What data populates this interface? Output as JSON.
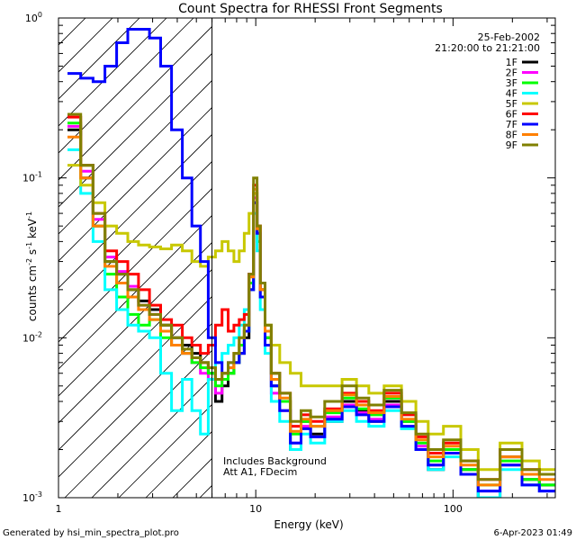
{
  "chart_data": {
    "type": "line",
    "title": "Count Spectra for RHESSI Front Segments",
    "xlabel": "Energy (keV)",
    "ylabel_parts": {
      "a": "counts cm",
      "b": "-2",
      "c": " s",
      "d": "-1",
      "e": " keV",
      "f": "-1"
    },
    "xscale": "log",
    "yscale": "log",
    "xlim": [
      1,
      330
    ],
    "ylim": [
      0.001,
      1
    ],
    "x_tick_labels": [
      {
        "v": 1,
        "t": "1"
      },
      {
        "v": 10,
        "t": "10"
      },
      {
        "v": 100,
        "t": "100"
      }
    ],
    "y_tick_labels": [
      {
        "m": 1,
        "e": 0,
        "base": "10",
        "exp": "0"
      },
      {
        "m": 1,
        "e": -1,
        "base": "10",
        "exp": "-1"
      },
      {
        "m": 1,
        "e": -2,
        "base": "10",
        "exp": "-2"
      },
      {
        "m": 1,
        "e": -3,
        "base": "10",
        "exp": "-3"
      }
    ],
    "date": "25-Feb-2002",
    "time_range": "21:20:00 to 21:21:00",
    "hatched_region_keV": [
      1,
      6
    ],
    "annotations": [
      "Includes Background",
      "Att A1, FDecim"
    ],
    "footer_left": "Generated by hsi_min_spectra_plot.pro",
    "footer_right": "6-Apr-2023 01:49",
    "series": [
      {
        "name": "1F",
        "color": "#000000",
        "x": [
          1.2,
          1.4,
          1.6,
          1.85,
          2.1,
          2.4,
          2.7,
          3.1,
          3.5,
          4,
          4.5,
          5,
          5.5,
          6,
          6.5,
          7,
          7.5,
          8,
          8.5,
          9,
          9.5,
          10,
          10.3,
          10.8,
          11.5,
          12.5,
          14,
          16,
          18,
          20,
          25,
          30,
          35,
          40,
          50,
          60,
          70,
          80,
          100,
          120,
          150,
          200,
          250,
          300
        ],
        "y": [
          0.2,
          0.1,
          0.05,
          0.03,
          0.025,
          0.02,
          0.017,
          0.015,
          0.012,
          0.01,
          0.009,
          0.008,
          0.007,
          0.006,
          0.004,
          0.005,
          0.006,
          0.007,
          0.008,
          0.01,
          0.02,
          0.07,
          0.05,
          0.02,
          0.01,
          0.005,
          0.004,
          0.002,
          0.003,
          0.0025,
          0.003,
          0.004,
          0.0035,
          0.003,
          0.004,
          0.003,
          0.002,
          0.0015,
          0.002,
          0.0015,
          0.001,
          0.0018,
          0.0013,
          0.0012
        ]
      },
      {
        "name": "2F",
        "color": "#ff00ff",
        "x": [
          1.2,
          1.4,
          1.6,
          1.85,
          2.1,
          2.4,
          2.7,
          3.1,
          3.5,
          4,
          4.5,
          5,
          5.5,
          6,
          6.5,
          7,
          7.5,
          8,
          8.5,
          9,
          9.5,
          10,
          10.3,
          10.8,
          11.5,
          12.5,
          14,
          16,
          18,
          20,
          25,
          30,
          35,
          40,
          50,
          60,
          70,
          80,
          100,
          120,
          150,
          200,
          250,
          300
        ],
        "y": [
          0.21,
          0.11,
          0.055,
          0.032,
          0.026,
          0.021,
          0.016,
          0.014,
          0.011,
          0.009,
          0.008,
          0.007,
          0.006,
          0.0055,
          0.0045,
          0.0055,
          0.0065,
          0.008,
          0.009,
          0.012,
          0.025,
          0.075,
          0.045,
          0.018,
          0.009,
          0.0045,
          0.0035,
          0.0022,
          0.0028,
          0.0024,
          0.0032,
          0.0038,
          0.0034,
          0.0031,
          0.0038,
          0.0028,
          0.0021,
          0.0016,
          0.0019,
          0.0014,
          0.0011,
          0.0016,
          0.0012,
          0.0011
        ]
      },
      {
        "name": "3F",
        "color": "#00ff00",
        "x": [
          1.2,
          1.4,
          1.6,
          1.85,
          2.1,
          2.4,
          2.7,
          3.1,
          3.5,
          4,
          4.5,
          5,
          5.5,
          6,
          6.5,
          7,
          7.5,
          8,
          8.5,
          9,
          9.5,
          10,
          10.3,
          10.8,
          11.5,
          12.5,
          14,
          16,
          18,
          20,
          25,
          30,
          35,
          40,
          50,
          60,
          70,
          80,
          100,
          120,
          150,
          200,
          250,
          300
        ],
        "y": [
          0.22,
          0.12,
          0.05,
          0.025,
          0.018,
          0.014,
          0.012,
          0.013,
          0.01,
          0.009,
          0.008,
          0.007,
          0.0065,
          0.006,
          0.005,
          0.0055,
          0.006,
          0.007,
          0.009,
          0.011,
          0.022,
          0.08,
          0.04,
          0.02,
          0.01,
          0.006,
          0.004,
          0.0025,
          0.003,
          0.0028,
          0.0034,
          0.0042,
          0.0036,
          0.0033,
          0.0042,
          0.003,
          0.0022,
          0.0017,
          0.002,
          0.0015,
          0.0012,
          0.0017,
          0.0013,
          0.0012
        ]
      },
      {
        "name": "4F",
        "color": "#00ffff",
        "x": [
          1.2,
          1.4,
          1.6,
          1.85,
          2.1,
          2.4,
          2.7,
          3.1,
          3.5,
          4,
          4.5,
          5,
          5.5,
          6,
          6.5,
          7,
          7.5,
          8,
          8.5,
          9,
          9.5,
          10,
          10.3,
          10.8,
          11.5,
          12.5,
          14,
          16,
          18,
          20,
          25,
          30,
          35,
          40,
          50,
          60,
          70,
          80,
          100,
          120,
          150,
          200,
          250,
          300
        ],
        "y": [
          0.15,
          0.08,
          0.04,
          0.02,
          0.015,
          0.012,
          0.011,
          0.01,
          0.006,
          0.0035,
          0.0055,
          0.0035,
          0.0025,
          0.0055,
          0.007,
          0.008,
          0.009,
          0.01,
          0.012,
          0.015,
          0.02,
          0.06,
          0.035,
          0.015,
          0.008,
          0.004,
          0.003,
          0.002,
          0.0025,
          0.0022,
          0.003,
          0.0035,
          0.003,
          0.0028,
          0.0035,
          0.0027,
          0.002,
          0.0015,
          0.0018,
          0.0014,
          0.001,
          0.0015,
          0.0012,
          0.0011
        ]
      },
      {
        "name": "5F",
        "color": "#c8c800",
        "x": [
          1.2,
          1.4,
          1.6,
          1.85,
          2.1,
          2.4,
          2.7,
          3.1,
          3.5,
          4,
          4.5,
          5,
          5.5,
          6,
          6.5,
          7,
          7.5,
          8,
          8.5,
          9,
          9.5,
          10,
          10.3,
          10.8,
          11.5,
          12.5,
          14,
          16,
          18,
          20,
          25,
          30,
          35,
          40,
          50,
          60,
          70,
          80,
          100,
          120,
          150,
          200,
          250,
          300
        ],
        "y": [
          0.12,
          0.09,
          0.07,
          0.05,
          0.045,
          0.04,
          0.038,
          0.037,
          0.036,
          0.038,
          0.035,
          0.03,
          0.028,
          0.032,
          0.035,
          0.04,
          0.035,
          0.03,
          0.035,
          0.045,
          0.06,
          0.08,
          0.05,
          0.02,
          0.012,
          0.009,
          0.007,
          0.006,
          0.005,
          0.005,
          0.005,
          0.0055,
          0.005,
          0.0045,
          0.005,
          0.004,
          0.003,
          0.0025,
          0.0028,
          0.002,
          0.0015,
          0.0022,
          0.0017,
          0.0015
        ]
      },
      {
        "name": "6F",
        "color": "#ff0000",
        "x": [
          1.2,
          1.4,
          1.6,
          1.85,
          2.1,
          2.4,
          2.7,
          3.1,
          3.5,
          4,
          4.5,
          5,
          5.5,
          6,
          6.5,
          7,
          7.5,
          8,
          8.5,
          9,
          9.5,
          10,
          10.3,
          10.8,
          11.5,
          12.5,
          14,
          16,
          18,
          20,
          25,
          30,
          35,
          40,
          50,
          60,
          70,
          80,
          100,
          120,
          150,
          200,
          250,
          300
        ],
        "y": [
          0.24,
          0.12,
          0.06,
          0.035,
          0.03,
          0.025,
          0.02,
          0.016,
          0.013,
          0.012,
          0.01,
          0.009,
          0.008,
          0.009,
          0.012,
          0.015,
          0.011,
          0.012,
          0.013,
          0.014,
          0.025,
          0.09,
          0.05,
          0.02,
          0.011,
          0.006,
          0.0045,
          0.0028,
          0.0033,
          0.003,
          0.0036,
          0.0045,
          0.004,
          0.0035,
          0.0045,
          0.0033,
          0.0024,
          0.0019,
          0.0022,
          0.0017,
          0.0013,
          0.002,
          0.0015,
          0.0014
        ]
      },
      {
        "name": "7F",
        "color": "#0000ff",
        "x": [
          1.2,
          1.4,
          1.6,
          1.85,
          2.1,
          2.4,
          2.7,
          3.1,
          3.5,
          4,
          4.5,
          5,
          5.5,
          6,
          6.5,
          7,
          7.5,
          8,
          8.5,
          9,
          9.5,
          10,
          10.3,
          10.8,
          11.5,
          12.5,
          14,
          16,
          18,
          20,
          25,
          30,
          35,
          40,
          50,
          60,
          70,
          80,
          100,
          120,
          150,
          200,
          250,
          300
        ],
        "y": [
          0.45,
          0.42,
          0.4,
          0.5,
          0.7,
          0.85,
          0.85,
          0.75,
          0.5,
          0.2,
          0.1,
          0.05,
          0.03,
          0.01,
          0.007,
          0.006,
          0.007,
          0.007,
          0.008,
          0.011,
          0.02,
          0.07,
          0.045,
          0.018,
          0.009,
          0.005,
          0.0035,
          0.0022,
          0.0027,
          0.0024,
          0.0031,
          0.0037,
          0.0033,
          0.003,
          0.0037,
          0.0028,
          0.002,
          0.0016,
          0.0019,
          0.0014,
          0.0011,
          0.0016,
          0.0012,
          0.0011
        ]
      },
      {
        "name": "8F",
        "color": "#ff8000",
        "x": [
          1.2,
          1.4,
          1.6,
          1.85,
          2.1,
          2.4,
          2.7,
          3.1,
          3.5,
          4,
          4.5,
          5,
          5.5,
          6,
          6.5,
          7,
          7.5,
          8,
          8.5,
          9,
          9.5,
          10,
          10.3,
          10.8,
          11.5,
          12.5,
          14,
          16,
          18,
          20,
          25,
          30,
          35,
          40,
          50,
          60,
          70,
          80,
          100,
          120,
          150,
          200,
          250,
          300
        ],
        "y": [
          0.18,
          0.1,
          0.05,
          0.028,
          0.022,
          0.018,
          0.015,
          0.013,
          0.011,
          0.009,
          0.008,
          0.0075,
          0.007,
          0.0065,
          0.0055,
          0.006,
          0.0065,
          0.008,
          0.01,
          0.012,
          0.024,
          0.085,
          0.048,
          0.02,
          0.011,
          0.0055,
          0.0042,
          0.0026,
          0.0031,
          0.0028,
          0.0035,
          0.0044,
          0.0038,
          0.0034,
          0.0043,
          0.0031,
          0.0023,
          0.0018,
          0.0021,
          0.0016,
          0.0012,
          0.0018,
          0.0014,
          0.0013
        ]
      },
      {
        "name": "9F",
        "color": "#808000",
        "x": [
          1.2,
          1.4,
          1.6,
          1.85,
          2.1,
          2.4,
          2.7,
          3.1,
          3.5,
          4,
          4.5,
          5,
          5.5,
          6,
          6.5,
          7,
          7.5,
          8,
          8.5,
          9,
          9.5,
          10,
          10.3,
          10.8,
          11.5,
          12.5,
          14,
          16,
          18,
          20,
          25,
          30,
          35,
          40,
          50,
          60,
          70,
          80,
          100,
          120,
          150,
          200,
          250,
          300
        ],
        "y": [
          0.25,
          0.12,
          0.06,
          0.03,
          0.025,
          0.02,
          0.016,
          0.014,
          0.012,
          0.01,
          0.0085,
          0.0075,
          0.007,
          0.0065,
          0.0055,
          0.006,
          0.007,
          0.008,
          0.01,
          0.012,
          0.025,
          0.1,
          0.05,
          0.022,
          0.012,
          0.006,
          0.0045,
          0.003,
          0.0035,
          0.0032,
          0.004,
          0.005,
          0.0042,
          0.0038,
          0.0047,
          0.0034,
          0.0025,
          0.002,
          0.0023,
          0.0017,
          0.0013,
          0.002,
          0.0015,
          0.0014
        ]
      }
    ]
  }
}
